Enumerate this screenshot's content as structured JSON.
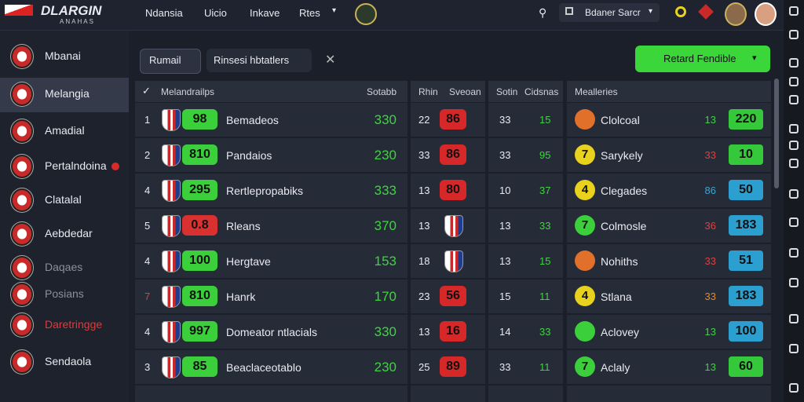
{
  "topbar": {
    "logo_title": "DLARGIN",
    "logo_subtitle": "ANAHAS",
    "nav": [
      "Ndansia",
      "Uicio",
      "Inkave",
      "Rtes"
    ],
    "search_select": "Bdaner Sarcr"
  },
  "sidebar": {
    "items": [
      "Mbanai",
      "Melangia",
      "Amadial",
      "Pertalndoina",
      "Clatalal",
      "Aebdedar",
      "Daqaes",
      "Posians",
      "Daretringge",
      "Sendaola"
    ]
  },
  "toolbar": {
    "filter_button": "Rumail",
    "filter_tab": "Rinsesi hbtatlers",
    "action_button": "Retard Fendible"
  },
  "table": {
    "headers": [
      "Melandrailps",
      "Sotabb",
      "Rhin",
      "Sveoan",
      "Sotin",
      "Cidsnas",
      "Mealleries"
    ],
    "rows": [
      [
        "1",
        "98",
        "Bemadeos",
        "330",
        "22",
        "86",
        "33",
        "15",
        null,
        "Clolcoal",
        "13",
        "220"
      ],
      [
        "2",
        "810",
        "Pandaios",
        "230",
        "33",
        "86",
        "33",
        "95",
        "7",
        "Sarykely",
        "33",
        "10"
      ],
      [
        "4",
        "295",
        "Rertlepropabiks",
        "333",
        "13",
        "80",
        "10",
        "37",
        "4",
        "Clegades",
        "86",
        "50"
      ],
      [
        "5",
        "0.8",
        "Rleans",
        "370",
        "13",
        null,
        "13",
        "33",
        "7",
        "Colmosle",
        "36",
        "183"
      ],
      [
        "4",
        "100",
        "Hergtave",
        "153",
        "18",
        null,
        "13",
        "15",
        null,
        "Nohiths",
        "33",
        "51"
      ],
      [
        "7",
        "810",
        "Hanrk",
        "170",
        "23",
        "56",
        "15",
        "11",
        "4",
        "Stlana",
        "33",
        "183"
      ],
      [
        "4",
        "997",
        "Domeator ntlacials",
        "330",
        "13",
        "16",
        "14",
        "33",
        null,
        "Aclovey",
        "13",
        "100"
      ],
      [
        "3",
        "85",
        "Beaclaceotablo",
        "230",
        "25",
        "89",
        "33",
        "11",
        "7",
        "Aclaly",
        "13",
        "60"
      ]
    ],
    "badge_colors": [
      "#3ccf3c",
      "#3ccf3c",
      "#3ccf3c",
      "#d93030",
      "#3ccf3c",
      "#3ccf3c",
      "#3ccf3c",
      "#3ccf3c"
    ],
    "circle_colors": [
      "#e0702a",
      "#e8d21e",
      "#e8d21e",
      "#3ccf3c",
      "#e0702a",
      "#e8d21e",
      "#3ccf3c",
      "#3ccf3c"
    ],
    "num_colors": [
      "#3fd43f",
      "#e04040",
      "#3aa6d0",
      "#e04040",
      "#e04040",
      "#e08a2a",
      "#3fd43f",
      "#3fd43f"
    ],
    "bar_colors": [
      "#34c83a",
      "#34c83a",
      "#2a9fd0",
      "#2a9fd0",
      "#2a9fd0",
      "#2a9fd0",
      "#2a9fd0",
      "#34c83a"
    ]
  }
}
